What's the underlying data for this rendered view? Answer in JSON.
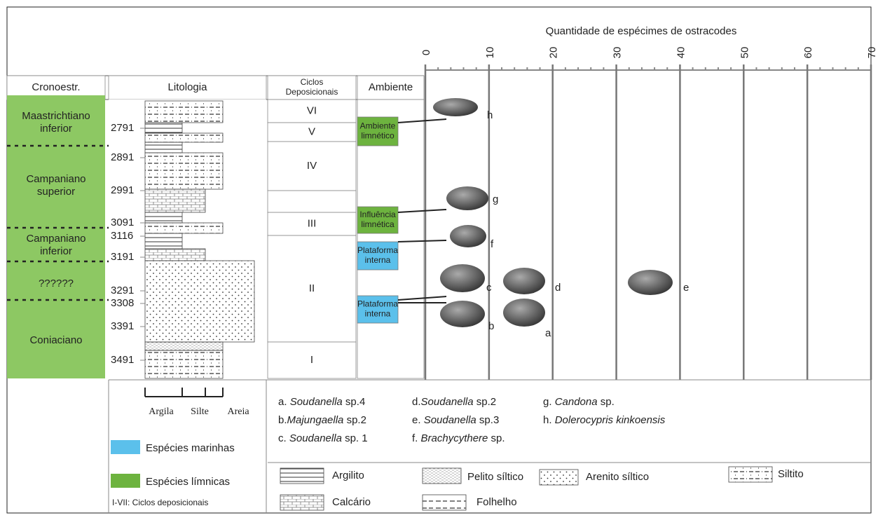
{
  "axis": {
    "title": "Quantidade de espécimes de ostracodes",
    "range": [
      0,
      70
    ],
    "ticks": [
      0,
      10,
      20,
      30,
      40,
      50,
      60,
      70
    ]
  },
  "headers": {
    "chronostrat": "Cronoestr.",
    "lithology": "Litologia",
    "cycles": "Ciclos Deposicionais",
    "environment": "Ambiente"
  },
  "chronostrat": [
    "Maastrichtiano inferior",
    "Campaniano superior",
    "Campaniano inferior",
    "??????",
    "Coniaciano"
  ],
  "depths": [
    "2791",
    "2891",
    "2991",
    "3091",
    "3116",
    "3191",
    "3291",
    "3308",
    "3391",
    "3491"
  ],
  "cycles": [
    "VI",
    "V",
    "IV",
    "III",
    "II",
    "I"
  ],
  "environments": [
    "Ambiente limnético",
    "Influência limnética",
    "Plataforma interna",
    "Plataforma interna"
  ],
  "specimen_labels": [
    "h",
    "g",
    "f",
    "c",
    "d",
    "e",
    "b",
    "a"
  ],
  "species": [
    [
      "a. ",
      "Soudanella",
      " sp.4"
    ],
    [
      "b.",
      "Majungaella",
      " sp.2"
    ],
    [
      "c. ",
      "Soudanella",
      " sp. 1"
    ],
    [
      "d.",
      "Soudanella",
      " sp.2"
    ],
    [
      "e. ",
      "Soudanella",
      " sp.3"
    ],
    [
      "f. ",
      "Brachycythere",
      " sp."
    ],
    [
      "g. ",
      "Candona",
      " sp."
    ],
    [
      "h. ",
      "Dolerocypris kinkoensis",
      ""
    ]
  ],
  "grain_scale": [
    "Argila",
    "Silte",
    "Areia"
  ],
  "legend": {
    "marine": "Espécies marinhas",
    "limnic": "Espécies límnicas",
    "cycles_note": "I-VII: Ciclos deposicionais",
    "lithologies": [
      "Argilito",
      "Pelito síltico",
      "Arenito síltico",
      "Siltito",
      "Calcário",
      "Folhelho"
    ]
  }
}
